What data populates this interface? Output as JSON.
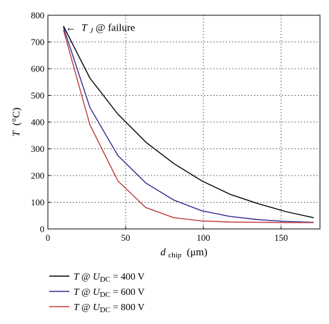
{
  "chart_data": {
    "type": "line",
    "xlabel": {
      "main": "d",
      "sub": "chip",
      "unit": "(μm)"
    },
    "ylabel": {
      "main": "T",
      "unit": "(°C)"
    },
    "xlim": [
      0,
      175
    ],
    "ylim": [
      0,
      800
    ],
    "xticks": [
      0,
      50,
      100,
      150
    ],
    "yticks": [
      0,
      100,
      200,
      300,
      400,
      500,
      600,
      700,
      800
    ],
    "grid": true,
    "annotation": {
      "arrow": "←",
      "var": "T",
      "sub": "J",
      "text": " @ failure",
      "x": 10,
      "y": 755
    },
    "series": [
      {
        "name": "400 V",
        "color": "#000000",
        "x": [
          10,
          27,
          45,
          63,
          81,
          99,
          117,
          135,
          153,
          171
        ],
        "y": [
          760,
          565,
          430,
          325,
          245,
          180,
          130,
          95,
          65,
          42
        ]
      },
      {
        "name": "600 V",
        "color": "#2e2b8f",
        "x": [
          10,
          27,
          45,
          63,
          81,
          99,
          117,
          135,
          153,
          171
        ],
        "y": [
          755,
          455,
          275,
          172,
          108,
          68,
          47,
          35,
          28,
          25
        ]
      },
      {
        "name": "800 V",
        "color": "#c0393b",
        "x": [
          10,
          27,
          45,
          63,
          81,
          99,
          117,
          135,
          153,
          171
        ],
        "y": [
          745,
          390,
          180,
          80,
          42,
          30,
          26,
          25,
          24,
          24
        ]
      }
    ],
    "legend": {
      "position": "below",
      "prefix_var": "T",
      "at": " @ ",
      "param_var": "U",
      "param_sub": "DC",
      "eq": " = "
    }
  }
}
